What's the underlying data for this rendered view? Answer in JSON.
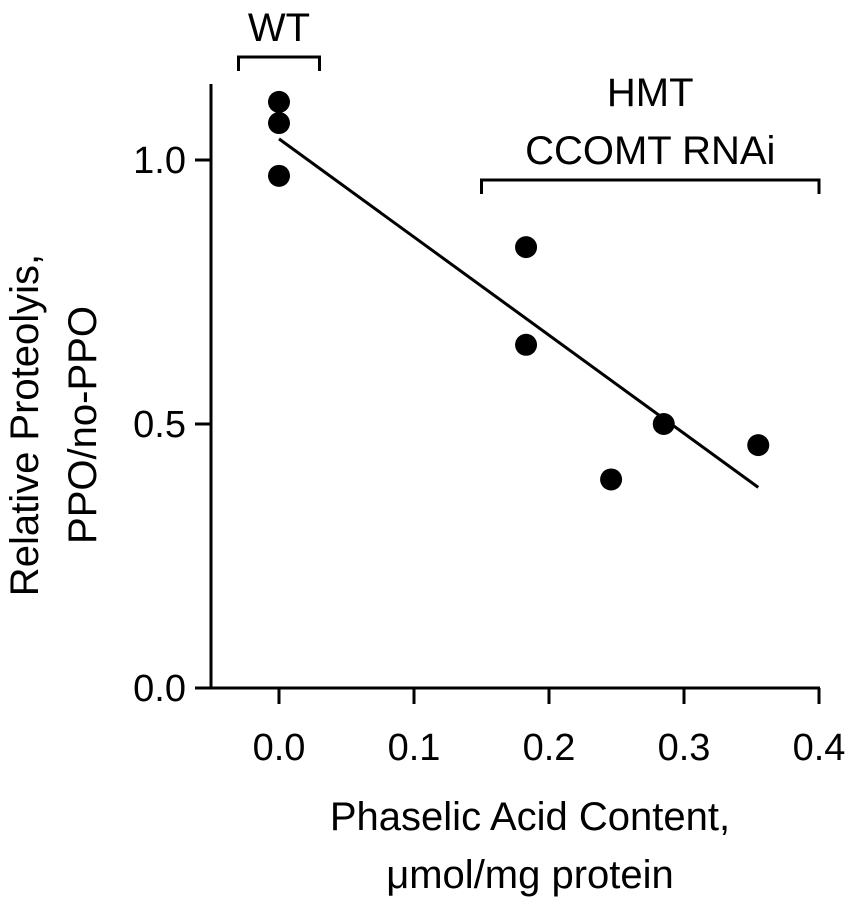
{
  "chart_data": {
    "type": "scatter",
    "xlabel_lines": [
      "Phaselic Acid Content,",
      "μmol/mg protein"
    ],
    "ylabel_lines": [
      "Relative Proteolyis,",
      "PPO/no-PPO"
    ],
    "xlim": [
      -0.05,
      0.4
    ],
    "ylim": [
      0.0,
      1.15
    ],
    "xticks": [
      0.0,
      0.1,
      0.2,
      0.3,
      0.4
    ],
    "xtick_labels": [
      "0.0",
      "0.1",
      "0.2",
      "0.3",
      "0.4"
    ],
    "yticks": [
      0.0,
      0.5,
      1.0
    ],
    "ytick_labels": [
      "0.0",
      "0.5",
      "1.0"
    ],
    "grid": false,
    "legend": "none",
    "series": [
      {
        "points": [
          {
            "x": 0.0,
            "y": 1.11
          },
          {
            "x": 0.0,
            "y": 1.07
          },
          {
            "x": 0.0,
            "y": 0.97
          },
          {
            "x": 0.183,
            "y": 0.835
          },
          {
            "x": 0.183,
            "y": 0.65
          },
          {
            "x": 0.246,
            "y": 0.395
          },
          {
            "x": 0.285,
            "y": 0.5
          },
          {
            "x": 0.355,
            "y": 0.46
          }
        ]
      }
    ],
    "fit_line": {
      "x": [
        0.0,
        0.355
      ],
      "y": [
        1.04,
        0.38
      ]
    },
    "annotations": [
      {
        "lines": [
          "WT"
        ],
        "x_range": [
          -0.03,
          0.03
        ]
      },
      {
        "lines": [
          "HMT",
          "CCOMT RNAi"
        ],
        "x_range": [
          0.15,
          0.4
        ]
      }
    ],
    "colors": {
      "marker": "#000000",
      "line": "#000000",
      "background": "#ffffff"
    }
  }
}
